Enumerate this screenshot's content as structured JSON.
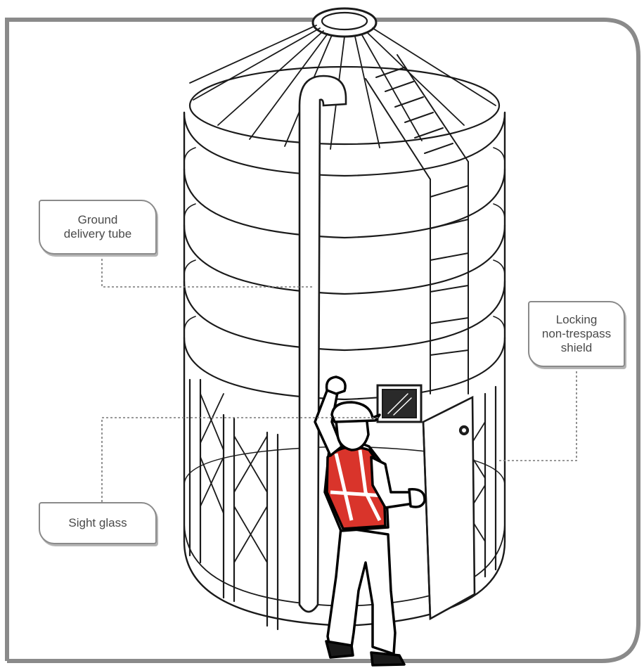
{
  "callouts": {
    "delivery_tube": {
      "lines": [
        "Ground",
        "delivery tube"
      ]
    },
    "shield": {
      "lines": [
        "Locking",
        "non-trespass",
        "shield"
      ]
    },
    "sight_glass": {
      "lines": [
        "Sight glass"
      ]
    }
  },
  "colors": {
    "frame": "#8a8a8a",
    "outline": "#111111",
    "vest": "#d9342b",
    "leader": "#777777"
  }
}
